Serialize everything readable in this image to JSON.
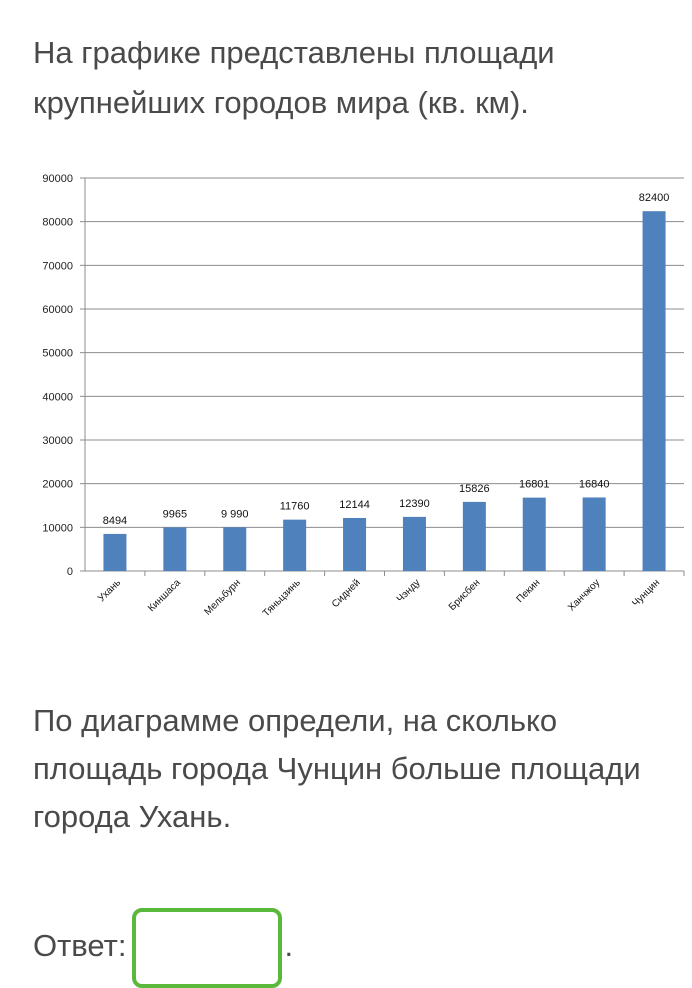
{
  "question": {
    "intro": "На графике представлены площади крупнейших городов мира (кв. км).",
    "main": "По диаграмме определи, на сколько площадь города Чунцин больше площади города Ухань.",
    "answer_label": "Ответ:",
    "answer_suffix": ".",
    "answer_value": ""
  },
  "chart_data": {
    "type": "bar",
    "categories": [
      "Ухань",
      "Киншаса",
      "Мельбурн",
      "Тяньцзинь",
      "Сидней",
      "Чэнду",
      "Брисбен",
      "Пекин",
      "Ханчжоу",
      "Чунцин"
    ],
    "values": [
      8494,
      9965,
      9990,
      11760,
      12144,
      12390,
      15826,
      16801,
      16840,
      82400
    ],
    "data_labels": [
      "8494",
      "9965",
      "9 990",
      "11760",
      "12144",
      "12390",
      "15826",
      "16801",
      "16840",
      "82400"
    ],
    "yticks": [
      0,
      10000,
      20000,
      30000,
      40000,
      50000,
      60000,
      70000,
      80000,
      90000
    ],
    "ylim": [
      0,
      90000
    ],
    "grid": true,
    "bar_color": "#4f81bd",
    "title": "",
    "xlabel": "",
    "ylabel": ""
  }
}
